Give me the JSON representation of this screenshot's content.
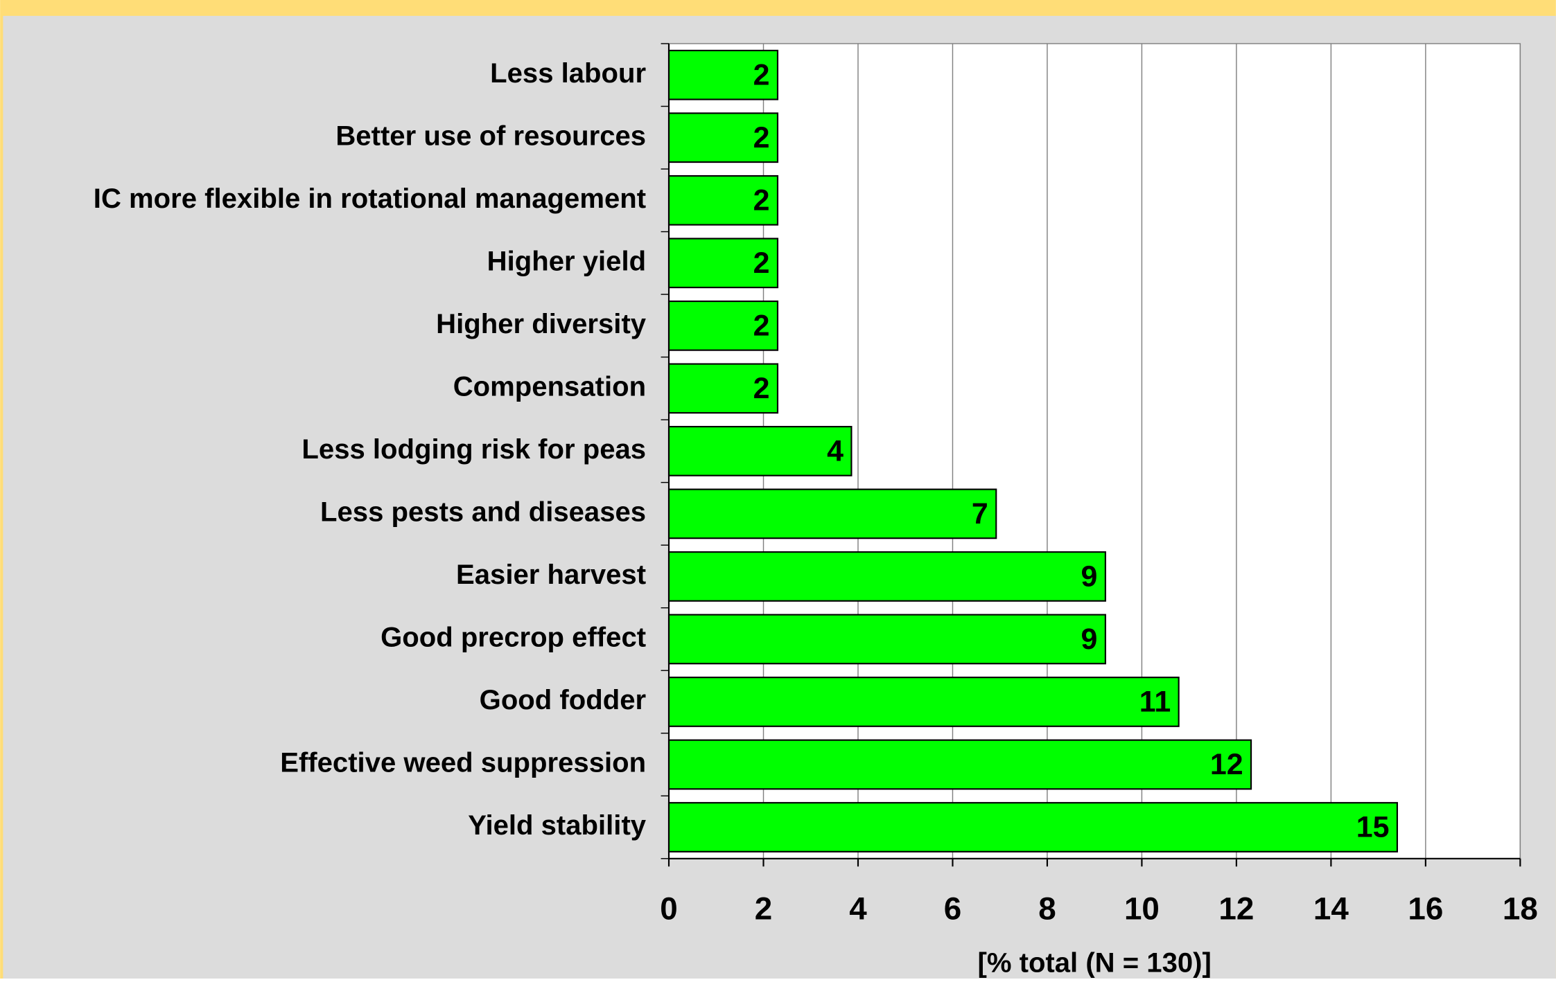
{
  "chart_data": {
    "type": "bar",
    "orientation": "horizontal",
    "categories": [
      "Less labour",
      "Better use of resources",
      "IC more flexible in rotational management",
      "Higher yield",
      "Higher diversity",
      "Compensation",
      "Less lodging risk for peas",
      "Less pests and diseases",
      "Easier harvest",
      "Good precrop effect",
      "Good fodder",
      "Effective weed suppression",
      "Yield stability"
    ],
    "values": [
      2.3,
      2.3,
      2.3,
      2.3,
      2.3,
      2.3,
      3.86,
      6.92,
      9.23,
      9.23,
      10.78,
      12.31,
      15.4
    ],
    "value_labels": [
      "2",
      "2",
      "2",
      "2",
      "2",
      "2",
      "4",
      "7",
      "9",
      "9",
      "11",
      "12",
      "15"
    ],
    "color": "#00ff00",
    "xlim": [
      0,
      18
    ],
    "xticks": [
      0,
      2,
      4,
      6,
      8,
      10,
      12,
      14,
      16,
      18
    ],
    "xlabel": "[% total (N = 130)]",
    "grid": true
  }
}
